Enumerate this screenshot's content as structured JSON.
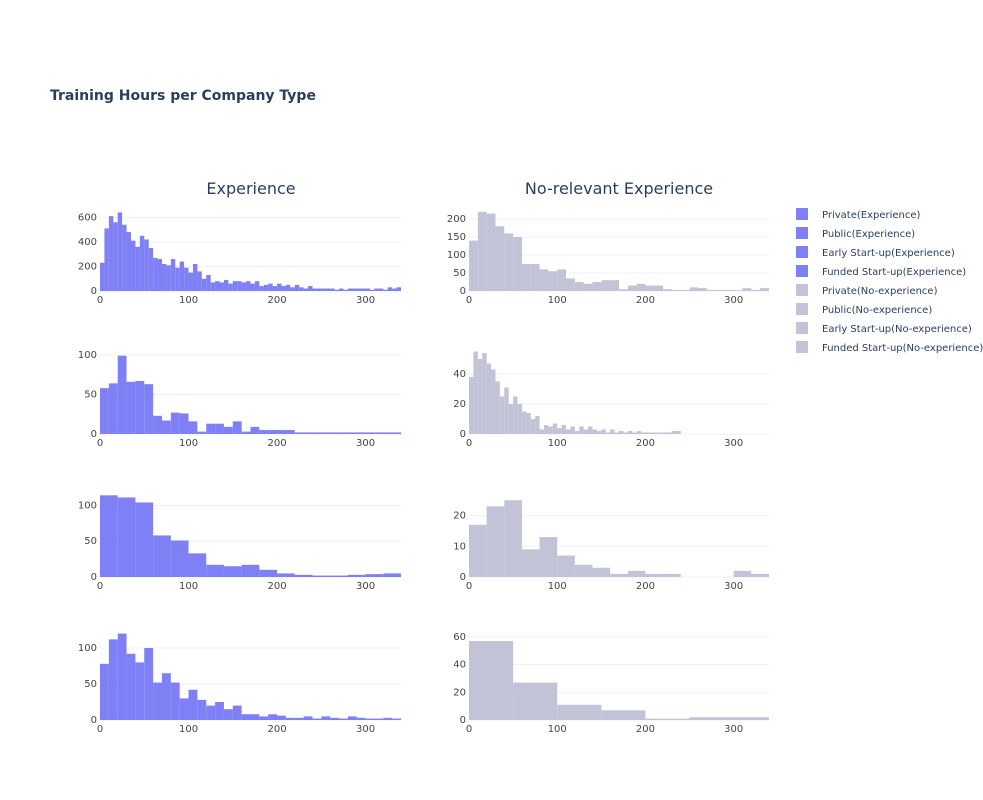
{
  "chart_data": {
    "type": "histogram",
    "title": "Training Hours per Company Type",
    "columns": [
      "Experience",
      "No-relevant Experience"
    ],
    "colors": {
      "Experience": "#7f7ff6",
      "No-experience": "#c2c3d7"
    },
    "xlim": [
      0,
      340
    ],
    "xticks": [
      0,
      100,
      200,
      300
    ],
    "legend": [
      {
        "name": "Private(Experience)",
        "color": "#7f7ff6"
      },
      {
        "name": "Public(Experience)",
        "color": "#7f7ff6"
      },
      {
        "name": "Early Start-up(Experience)",
        "color": "#7f7ff6"
      },
      {
        "name": "Funded Start-up(Experience)",
        "color": "#7f7ff6"
      },
      {
        "name": "Private(No-experience)",
        "color": "#c2c3d7"
      },
      {
        "name": "Public(No-experience)",
        "color": "#c2c3d7"
      },
      {
        "name": "Early Start-up(No-experience)",
        "color": "#c2c3d7"
      },
      {
        "name": "Funded Start-up(No-experience)",
        "color": "#c2c3d7"
      }
    ],
    "panels": [
      {
        "series": "Private(Experience)",
        "row": 0,
        "col": 0,
        "ymax": 660,
        "yticks": [
          0,
          200,
          400,
          600
        ],
        "bin_start": 0,
        "bin_width": 5,
        "values": [
          230,
          510,
          610,
          560,
          640,
          540,
          480,
          410,
          360,
          450,
          420,
          350,
          270,
          260,
          220,
          210,
          260,
          190,
          240,
          190,
          150,
          220,
          160,
          100,
          130,
          70,
          80,
          70,
          90,
          60,
          80,
          80,
          70,
          80,
          60,
          80,
          40,
          50,
          60,
          40,
          60,
          40,
          50,
          30,
          50,
          30,
          20,
          40,
          20,
          20,
          20,
          20,
          20,
          10,
          20,
          10,
          20,
          20,
          20,
          20,
          20,
          10,
          20,
          20,
          10,
          30,
          20,
          30
        ]
      },
      {
        "series": "Private(No-experience)",
        "row": 0,
        "col": 1,
        "ymax": 225,
        "yticks": [
          0,
          50,
          100,
          150,
          200
        ],
        "bin_start": 0,
        "bin_width": 10,
        "values": [
          140,
          220,
          215,
          180,
          160,
          150,
          75,
          75,
          60,
          55,
          60,
          35,
          25,
          20,
          25,
          30,
          30,
          5,
          15,
          20,
          15,
          15,
          5,
          3,
          3,
          10,
          8,
          3,
          3,
          3,
          2,
          8,
          3,
          8
        ]
      },
      {
        "series": "Public(Experience)",
        "row": 1,
        "col": 0,
        "ymax": 110,
        "yticks": [
          0,
          50,
          100
        ],
        "bin_start": 0,
        "bin_width": 10,
        "values": [
          58,
          64,
          99,
          66,
          67,
          63,
          23,
          17,
          27,
          26,
          16,
          3,
          13,
          13,
          9,
          16,
          3,
          9,
          5,
          5,
          5,
          5,
          2,
          2,
          2,
          2,
          2,
          2,
          2,
          2,
          2,
          2,
          2,
          2
        ]
      },
      {
        "series": "Public(No-experience)",
        "row": 1,
        "col": 1,
        "ymax": 58,
        "yticks": [
          0,
          20,
          40
        ],
        "bin_start": 0,
        "bin_width": 5,
        "values": [
          38,
          55,
          50,
          54,
          47,
          43,
          35,
          25,
          31,
          20,
          25,
          20,
          15,
          14,
          10,
          12,
          3,
          6,
          5,
          7,
          4,
          6,
          3,
          5,
          2,
          5,
          3,
          5,
          3,
          2,
          3,
          1,
          3,
          1,
          2,
          1,
          2,
          1,
          2,
          1,
          1,
          1,
          1,
          1,
          1,
          1,
          2,
          2
        ]
      },
      {
        "series": "Early Start-up(Experience)",
        "row": 2,
        "col": 0,
        "ymax": 120,
        "yticks": [
          0,
          50,
          100
        ],
        "bin_start": 0,
        "bin_width": 20,
        "values": [
          114,
          111,
          104,
          58,
          51,
          33,
          17,
          15,
          17,
          10,
          5,
          3,
          2,
          2,
          3,
          4,
          5
        ]
      },
      {
        "series": "Early Start-up(No-experience)",
        "row": 2,
        "col": 1,
        "ymax": 28,
        "yticks": [
          0,
          10,
          20
        ],
        "bin_start": 0,
        "bin_width": 20,
        "values": [
          17,
          23,
          25,
          9,
          13,
          7,
          4,
          3,
          1,
          2,
          1,
          1,
          0,
          0,
          0,
          2,
          1
        ]
      },
      {
        "series": "Funded Start-up(Experience)",
        "row": 3,
        "col": 0,
        "ymax": 125,
        "yticks": [
          0,
          50,
          100
        ],
        "bin_start": 0,
        "bin_width": 10,
        "values": [
          78,
          112,
          120,
          92,
          80,
          100,
          52,
          65,
          52,
          30,
          42,
          28,
          20,
          25,
          15,
          20,
          8,
          8,
          5,
          8,
          6,
          3,
          3,
          5,
          2,
          5,
          3,
          2,
          5,
          3,
          2,
          2,
          3,
          2
        ]
      },
      {
        "series": "Funded Start-up(No-experience)",
        "row": 3,
        "col": 1,
        "ymax": 65,
        "yticks": [
          0,
          20,
          40,
          60
        ],
        "bin_start": 0,
        "bin_width": 50,
        "values": [
          57,
          27,
          11,
          7,
          1,
          2,
          2
        ]
      }
    ]
  }
}
